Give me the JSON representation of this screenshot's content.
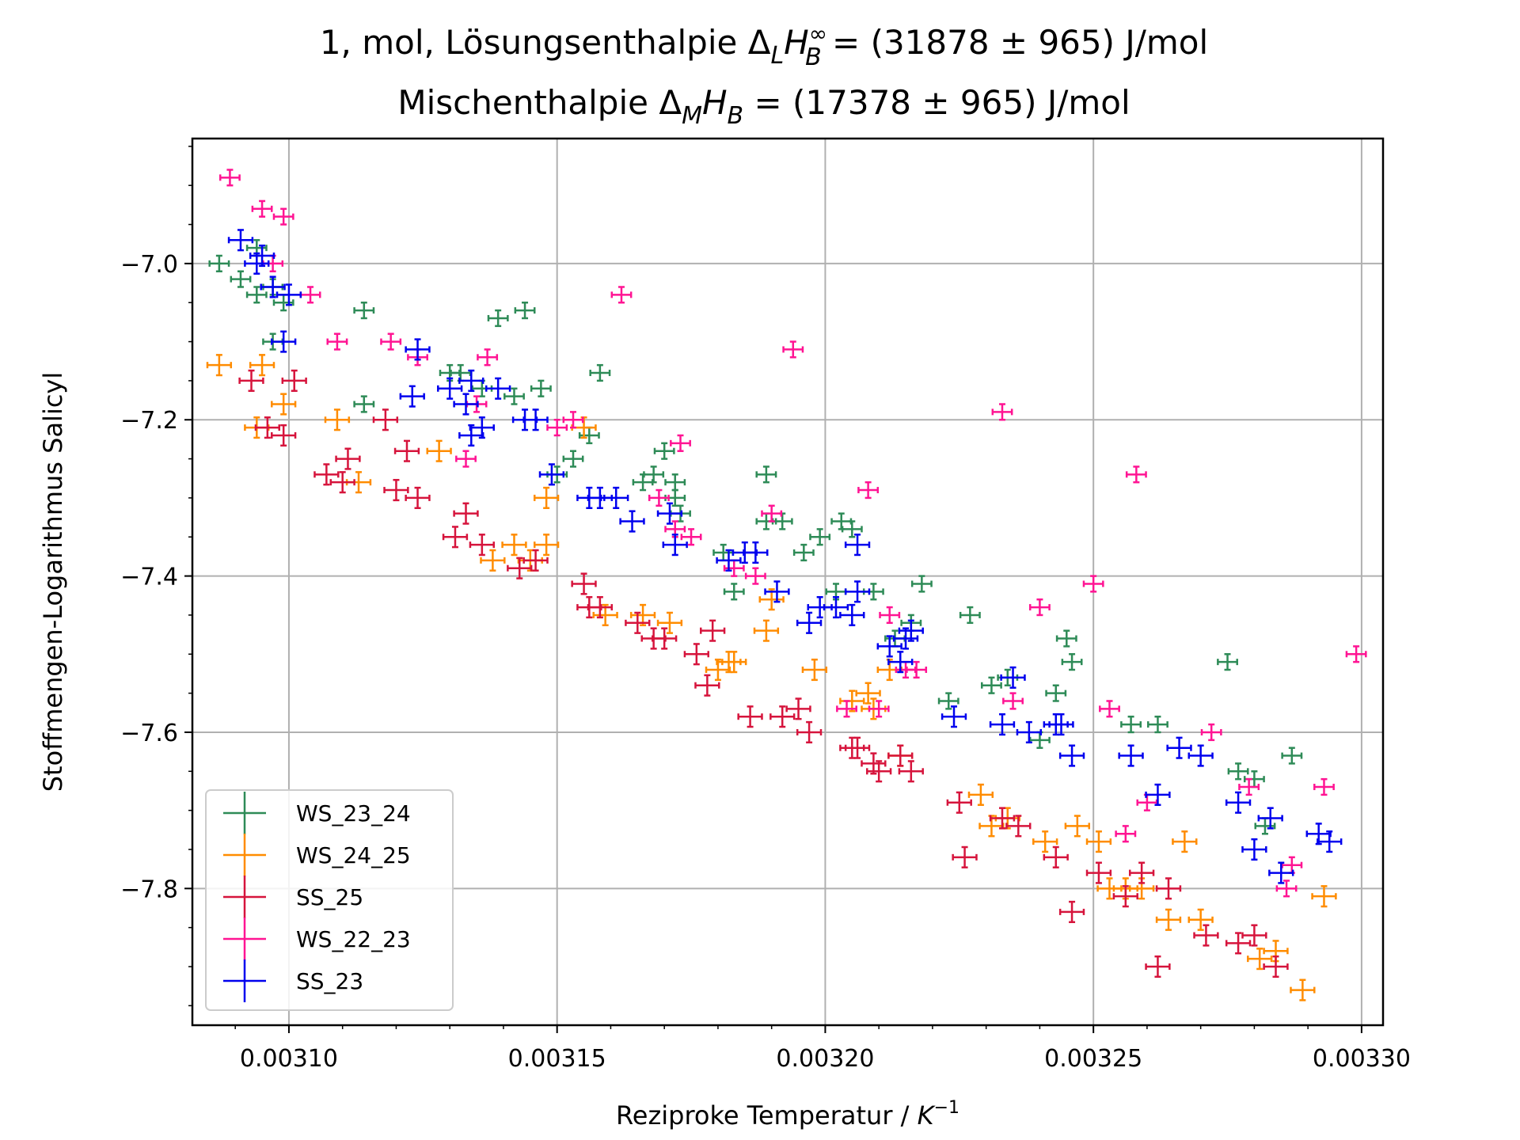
{
  "chart_data": {
    "type": "scatter",
    "title_line1": {
      "prefix": "1, mol, Lösungsenthalpie Δ",
      "sub1": "L",
      "h": "H",
      "sup": "∞",
      "sub2": "B",
      "suffix": " = (31878 ± 965) J/mol"
    },
    "title_line2": {
      "prefix": "Mischenthalpie Δ",
      "sub1": "M",
      "h": "H",
      "sub2": "B",
      "suffix": " =  (17378 ± 965) J/mol"
    },
    "xlabel": {
      "text": "Reziproke Temperatur / ",
      "k": "K",
      "sup": "−1"
    },
    "ylabel": "Stoffmengen-Logarithmus Salicyl",
    "xlim": [
      0.003082,
      0.003304
    ],
    "ylim": [
      -7.975,
      -6.84
    ],
    "xticks": [
      0.0031,
      0.00315,
      0.0032,
      0.00325,
      0.0033
    ],
    "xtick_labels": [
      "0.00310",
      "0.00315",
      "0.00320",
      "0.00325",
      "0.00330"
    ],
    "yticks": [
      -7.0,
      -7.2,
      -7.4,
      -7.6,
      -7.8
    ],
    "ytick_labels": [
      "−7.0",
      "−7.2",
      "−7.4",
      "−7.6",
      "−7.8"
    ],
    "grid": true,
    "legend_position": "lower-left",
    "series": [
      {
        "name": "WS_23_24",
        "color": "#2e8b57",
        "xerr": 1.8e-06,
        "yerr": 0.01,
        "x": [
          0.003087,
          0.003091,
          0.003094,
          0.003094,
          0.003097,
          0.003099,
          0.003097,
          0.003114,
          0.003114,
          0.00313,
          0.003132,
          0.003136,
          0.003139,
          0.003142,
          0.003144,
          0.003147,
          0.00315,
          0.003153,
          0.003156,
          0.003158,
          0.003166,
          0.003168,
          0.00317,
          0.003172,
          0.003172,
          0.003173,
          0.003181,
          0.003183,
          0.003189,
          0.003189,
          0.003192,
          0.003196,
          0.003199,
          0.003202,
          0.003203,
          0.003205,
          0.003209,
          0.003213,
          0.003216,
          0.003218,
          0.003223,
          0.003227,
          0.003231,
          0.003234,
          0.00324,
          0.003243,
          0.003245,
          0.003246,
          0.003257,
          0.003262,
          0.003275,
          0.003277,
          0.00328,
          0.003282,
          0.003287
        ],
        "y": [
          -7.0,
          -7.02,
          -6.98,
          -7.04,
          -7.03,
          -7.05,
          -7.1,
          -7.06,
          -7.18,
          -7.14,
          -7.14,
          -7.16,
          -7.07,
          -7.17,
          -7.06,
          -7.16,
          -7.27,
          -7.25,
          -7.22,
          -7.14,
          -7.28,
          -7.27,
          -7.24,
          -7.28,
          -7.3,
          -7.32,
          -7.37,
          -7.42,
          -7.27,
          -7.33,
          -7.33,
          -7.37,
          -7.35,
          -7.42,
          -7.33,
          -7.34,
          -7.42,
          -7.48,
          -7.46,
          -7.41,
          -7.56,
          -7.45,
          -7.54,
          -7.53,
          -7.61,
          -7.55,
          -7.48,
          -7.51,
          -7.59,
          -7.59,
          -7.51,
          -7.65,
          -7.66,
          -7.72,
          -7.63
        ]
      },
      {
        "name": "WS_24_25",
        "color": "#ff8c00",
        "xerr": 2.2e-06,
        "yerr": 0.013,
        "x": [
          0.003087,
          0.003094,
          0.003095,
          0.003099,
          0.003109,
          0.003113,
          0.003128,
          0.003138,
          0.003142,
          0.003145,
          0.003148,
          0.003148,
          0.003155,
          0.003159,
          0.003166,
          0.003171,
          0.00318,
          0.003182,
          0.003183,
          0.003189,
          0.00319,
          0.003198,
          0.003205,
          0.003208,
          0.003209,
          0.003212,
          0.003214,
          0.003229,
          0.003231,
          0.003234,
          0.003241,
          0.003247,
          0.003251,
          0.003253,
          0.003256,
          0.003259,
          0.003264,
          0.003267,
          0.00327,
          0.003281,
          0.003284,
          0.003289,
          0.003293
        ],
        "y": [
          -7.13,
          -7.21,
          -7.13,
          -7.18,
          -7.2,
          -7.28,
          -7.24,
          -7.38,
          -7.36,
          -7.38,
          -7.3,
          -7.36,
          -7.21,
          -7.45,
          -7.45,
          -7.46,
          -7.52,
          -7.51,
          -7.51,
          -7.47,
          -7.43,
          -7.52,
          -7.56,
          -7.55,
          -7.57,
          -7.52,
          -7.63,
          -7.68,
          -7.72,
          -7.71,
          -7.74,
          -7.72,
          -7.74,
          -7.8,
          -7.8,
          -7.8,
          -7.84,
          -7.74,
          -7.84,
          -7.89,
          -7.88,
          -7.93,
          -7.81
        ]
      },
      {
        "name": "SS_25",
        "color": "#d6143c",
        "xerr": 2.2e-06,
        "yerr": 0.013,
        "x": [
          0.003093,
          0.003096,
          0.003099,
          0.003101,
          0.003107,
          0.00311,
          0.003111,
          0.003118,
          0.00312,
          0.003122,
          0.003124,
          0.003131,
          0.003133,
          0.003136,
          0.003143,
          0.003146,
          0.003155,
          0.003156,
          0.003158,
          0.003165,
          0.003168,
          0.00317,
          0.003176,
          0.003178,
          0.003179,
          0.003186,
          0.003192,
          0.003195,
          0.003197,
          0.003205,
          0.003206,
          0.003209,
          0.00321,
          0.003214,
          0.003216,
          0.003225,
          0.003226,
          0.003233,
          0.003236,
          0.003243,
          0.003246,
          0.003251,
          0.003256,
          0.003259,
          0.003262,
          0.003264,
          0.003271,
          0.003277,
          0.00328,
          0.003284
        ],
        "y": [
          -7.15,
          -7.21,
          -7.22,
          -7.15,
          -7.27,
          -7.28,
          -7.25,
          -7.2,
          -7.29,
          -7.24,
          -7.3,
          -7.35,
          -7.32,
          -7.36,
          -7.39,
          -7.38,
          -7.41,
          -7.44,
          -7.44,
          -7.46,
          -7.48,
          -7.48,
          -7.5,
          -7.54,
          -7.47,
          -7.58,
          -7.58,
          -7.57,
          -7.6,
          -7.62,
          -7.62,
          -7.64,
          -7.65,
          -7.63,
          -7.65,
          -7.69,
          -7.76,
          -7.71,
          -7.72,
          -7.76,
          -7.83,
          -7.78,
          -7.81,
          -7.78,
          -7.9,
          -7.8,
          -7.86,
          -7.87,
          -7.86,
          -7.9
        ]
      },
      {
        "name": "WS_22_23",
        "color": "#ff1493",
        "xerr": 1.8e-06,
        "yerr": 0.01,
        "x": [
          0.003089,
          0.003095,
          0.003097,
          0.003099,
          0.003104,
          0.003109,
          0.003119,
          0.003124,
          0.003133,
          0.003135,
          0.003137,
          0.00315,
          0.003153,
          0.003162,
          0.003169,
          0.003172,
          0.003173,
          0.003175,
          0.003183,
          0.003187,
          0.00319,
          0.003194,
          0.003204,
          0.003208,
          0.00321,
          0.003212,
          0.003215,
          0.003217,
          0.003233,
          0.003235,
          0.00324,
          0.00325,
          0.003253,
          0.003256,
          0.003258,
          0.00326,
          0.003272,
          0.003279,
          0.003286,
          0.003287,
          0.003293,
          0.003299
        ],
        "y": [
          -6.89,
          -6.93,
          -7.0,
          -6.94,
          -7.04,
          -7.1,
          -7.1,
          -7.12,
          -7.25,
          -7.18,
          -7.12,
          -7.21,
          -7.2,
          -7.04,
          -7.3,
          -7.34,
          -7.23,
          -7.35,
          -7.39,
          -7.4,
          -7.32,
          -7.11,
          -7.57,
          -7.29,
          -7.57,
          -7.45,
          -7.52,
          -7.52,
          -7.19,
          -7.56,
          -7.44,
          -7.41,
          -7.57,
          -7.73,
          -7.27,
          -7.69,
          -7.6,
          -7.67,
          -7.8,
          -7.77,
          -7.67,
          -7.5
        ]
      },
      {
        "name": "SS_23",
        "color": "#0000ee",
        "xerr": 2.2e-06,
        "yerr": 0.013,
        "x": [
          0.003091,
          0.003094,
          0.003095,
          0.003097,
          0.003099,
          0.0031,
          0.003124,
          0.003123,
          0.00313,
          0.003133,
          0.003134,
          0.003134,
          0.003136,
          0.003139,
          0.003144,
          0.003146,
          0.003149,
          0.003156,
          0.003158,
          0.003161,
          0.003164,
          0.003171,
          0.003172,
          0.003182,
          0.003185,
          0.003187,
          0.003191,
          0.003197,
          0.003199,
          0.003202,
          0.003205,
          0.003206,
          0.003206,
          0.003212,
          0.003214,
          0.003215,
          0.003216,
          0.003224,
          0.003233,
          0.003235,
          0.003238,
          0.003243,
          0.003244,
          0.003246,
          0.003257,
          0.003262,
          0.003266,
          0.00327,
          0.003277,
          0.00328,
          0.003283,
          0.003285,
          0.003292,
          0.003294
        ],
        "y": [
          -6.97,
          -7.0,
          -6.99,
          -7.03,
          -7.1,
          -7.04,
          -7.11,
          -7.17,
          -7.16,
          -7.18,
          -7.15,
          -7.22,
          -7.21,
          -7.16,
          -7.2,
          -7.2,
          -7.27,
          -7.3,
          -7.3,
          -7.3,
          -7.33,
          -7.32,
          -7.36,
          -7.38,
          -7.37,
          -7.37,
          -7.42,
          -7.46,
          -7.44,
          -7.44,
          -7.45,
          -7.42,
          -7.36,
          -7.49,
          -7.51,
          -7.48,
          -7.47,
          -7.58,
          -7.59,
          -7.53,
          -7.6,
          -7.59,
          -7.59,
          -7.63,
          -7.63,
          -7.68,
          -7.62,
          -7.63,
          -7.69,
          -7.75,
          -7.71,
          -7.78,
          -7.73,
          -7.74
        ]
      }
    ]
  }
}
